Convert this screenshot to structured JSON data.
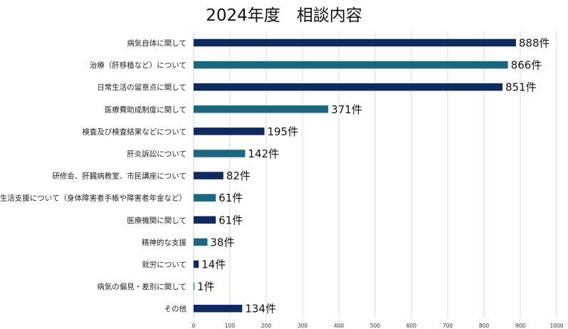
{
  "chart_data": {
    "type": "bar",
    "orientation": "horizontal",
    "title": "2024年度　相談内容",
    "categories": [
      "病気自体に関して",
      "治療（肝移植など）について",
      "日常生活の留意点に関して",
      "医療費助成制度に関して",
      "検査及び検査結果などについて",
      "肝炎訴訟について",
      "研修会、肝臓病教室、市民講座について",
      "生活支援について（身体障害者手帳や障害者年金など）",
      "医療機関に関して",
      "精神的な支援",
      "就労について",
      "病気の偏見・差別に関して",
      "その他"
    ],
    "values": [
      888,
      866,
      851,
      371,
      195,
      142,
      82,
      61,
      61,
      38,
      14,
      1,
      134
    ],
    "data_labels": [
      "888件",
      "866件",
      "851件",
      "371件",
      "195件",
      "142件",
      "82件",
      "61件",
      "61件",
      "38件",
      "14件",
      "1件",
      "134件"
    ],
    "bar_colors": [
      "#0e2a5e",
      "#1d6680",
      "#0e2a5e",
      "#1d6680",
      "#0e2a5e",
      "#1d6680",
      "#0e2a5e",
      "#1d6680",
      "#0e2a5e",
      "#1d6680",
      "#0e2a5e",
      "#1d6680",
      "#0e2a5e"
    ],
    "xlim": [
      0,
      1000
    ],
    "xticks": [
      "0",
      "100",
      "200",
      "300",
      "400",
      "500",
      "600",
      "700",
      "800",
      "900",
      "1000"
    ],
    "grid": true,
    "legend": "none"
  }
}
